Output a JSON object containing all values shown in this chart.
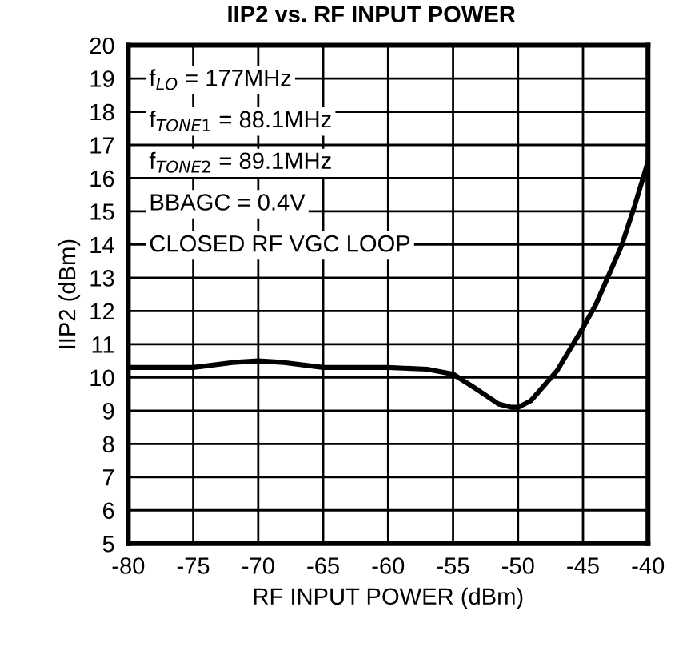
{
  "chart_data": {
    "type": "line",
    "title": "IIP2 vs. RF INPUT POWER",
    "xlabel": "RF INPUT POWER (dBm)",
    "ylabel": "IIP2 (dBm)",
    "annotations": [
      "f$_{LO}$ = 177MHz",
      "f$_{TONE1}$ = 88.1MHz",
      "f$_{TONE2}$ = 89.1MHz",
      "BBAGC = 0.4V",
      "CLOSED RF VGC LOOP"
    ],
    "x": [
      -80,
      -77,
      -75,
      -72,
      -70,
      -68,
      -65,
      -60,
      -57,
      -55,
      -53,
      -51.5,
      -50.5,
      -50,
      -49,
      -47,
      -45,
      -44,
      -42,
      -41,
      -40
    ],
    "series": [
      {
        "color": "#000000",
        "values": [
          10.3,
          10.3,
          10.3,
          10.45,
          10.5,
          10.45,
          10.3,
          10.3,
          10.25,
          10.1,
          9.6,
          9.2,
          9.1,
          9.1,
          9.3,
          10.2,
          11.5,
          12.2,
          14.0,
          15.2,
          16.5
        ]
      }
    ],
    "xlim": [
      -80,
      -40
    ],
    "xticks": [
      -80,
      -75,
      -70,
      -65,
      -60,
      -55,
      -50,
      -45,
      -40
    ],
    "ylim": [
      5,
      20
    ],
    "yticks": [
      5,
      6,
      7,
      8,
      9,
      10,
      11,
      12,
      13,
      14,
      15,
      16,
      17,
      18,
      19,
      20
    ],
    "grid": true,
    "legend": false,
    "marker": "none",
    "line_style": "solid"
  }
}
